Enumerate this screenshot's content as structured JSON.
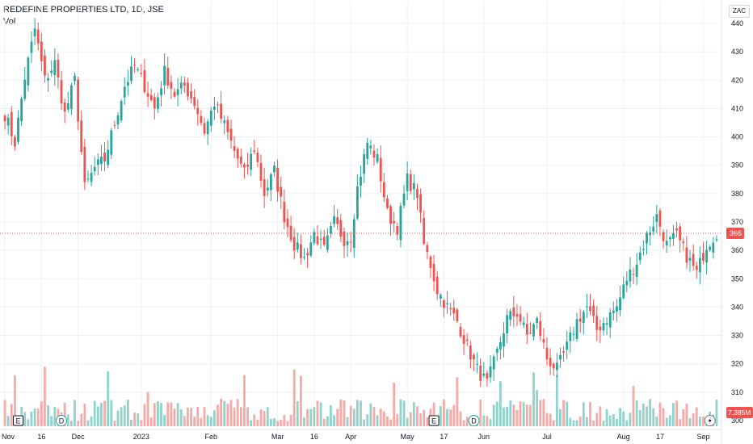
{
  "header": {
    "title": "REDEFINE PROPERTIES LTD, 1D, JSE",
    "volume_label": "Vol"
  },
  "currency": "ZAC",
  "colors": {
    "up": "#26a69a",
    "down": "#ef5350",
    "up_vol": "#8fd3cb",
    "down_vol": "#f7a9a7",
    "grid": "#eef0f3",
    "last_price": "#ef5350"
  },
  "chart_data": {
    "type": "candlestick",
    "ylim": [
      298,
      442
    ],
    "yticks": [
      300,
      310,
      320,
      330,
      340,
      350,
      360,
      370,
      380,
      390,
      400,
      410,
      420,
      430,
      440
    ],
    "xticks": [
      "Nov",
      "16",
      "Dec",
      "2023",
      "Feb",
      "Mar",
      "16",
      "Apr",
      "May",
      "17",
      "Jun",
      "Jul",
      "Aug",
      "17",
      "Sep"
    ],
    "last_price": 366,
    "last_price_label": "366",
    "volume_label": "7.385M",
    "event_markers": [
      {
        "label": "E",
        "shape": "square"
      },
      {
        "label": "D",
        "shape": "circle"
      },
      {
        "label": "E",
        "shape": "square"
      },
      {
        "label": "D",
        "shape": "circle"
      }
    ],
    "keypoints": [
      [
        0,
        408
      ],
      [
        3,
        398
      ],
      [
        6,
        421
      ],
      [
        9,
        438
      ],
      [
        12,
        420
      ],
      [
        15,
        426
      ],
      [
        18,
        408
      ],
      [
        21,
        420
      ],
      [
        24,
        382
      ],
      [
        27,
        389
      ],
      [
        30,
        392
      ],
      [
        33,
        405
      ],
      [
        36,
        418
      ],
      [
        39,
        425
      ],
      [
        42,
        418
      ],
      [
        45,
        410
      ],
      [
        48,
        423
      ],
      [
        51,
        415
      ],
      [
        54,
        418
      ],
      [
        57,
        412
      ],
      [
        60,
        402
      ],
      [
        63,
        412
      ],
      [
        66,
        404
      ],
      [
        69,
        395
      ],
      [
        72,
        387
      ],
      [
        75,
        396
      ],
      [
        78,
        380
      ],
      [
        81,
        388
      ],
      [
        84,
        372
      ],
      [
        87,
        362
      ],
      [
        90,
        357
      ],
      [
        93,
        366
      ],
      [
        96,
        360
      ],
      [
        99,
        370
      ],
      [
        102,
        364
      ],
      [
        104,
        365
      ],
      [
        106,
        382
      ],
      [
        109,
        398
      ],
      [
        112,
        392
      ],
      [
        115,
        373
      ],
      [
        118,
        368
      ],
      [
        121,
        385
      ],
      [
        124,
        380
      ],
      [
        126,
        362
      ],
      [
        128,
        355
      ],
      [
        130,
        346
      ],
      [
        133,
        340
      ],
      [
        136,
        335
      ],
      [
        139,
        326
      ],
      [
        142,
        318
      ],
      [
        145,
        313
      ],
      [
        148,
        324
      ],
      [
        151,
        336
      ],
      [
        154,
        338
      ],
      [
        157,
        330
      ],
      [
        160,
        335
      ],
      [
        163,
        322
      ],
      [
        166,
        318
      ],
      [
        169,
        326
      ],
      [
        172,
        335
      ],
      [
        175,
        340
      ],
      [
        178,
        332
      ],
      [
        181,
        336
      ],
      [
        184,
        340
      ],
      [
        187,
        350
      ],
      [
        190,
        356
      ],
      [
        193,
        365
      ],
      [
        196,
        372
      ],
      [
        199,
        362
      ],
      [
        202,
        365
      ],
      [
        205,
        358
      ],
      [
        208,
        352
      ],
      [
        211,
        362
      ],
      [
        214,
        366
      ]
    ],
    "n_candles": 215
  }
}
